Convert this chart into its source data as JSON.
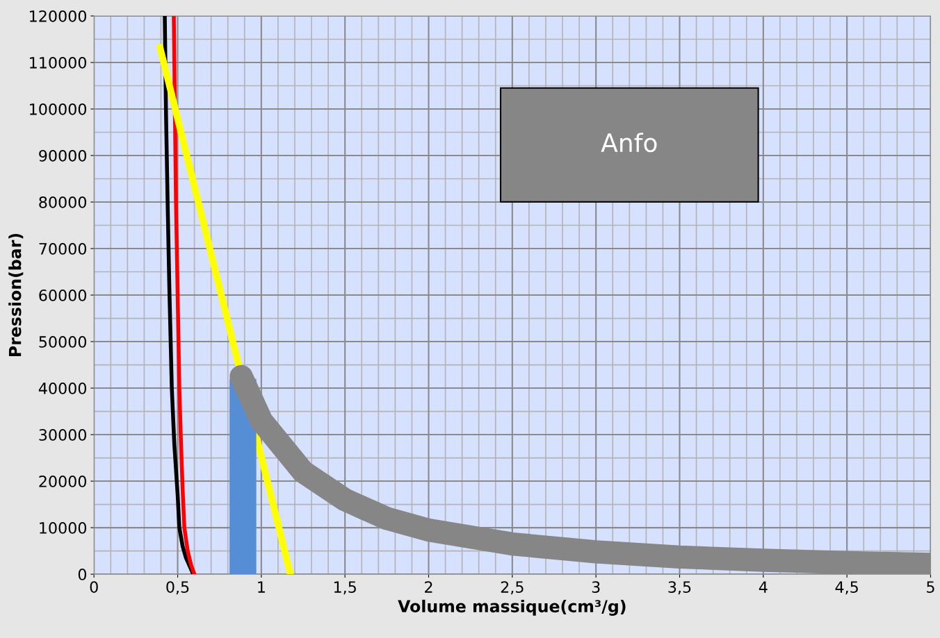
{
  "chart_data": {
    "type": "line",
    "xlabel": "Volume massique(cm³/g)",
    "ylabel": "Pression(bar)",
    "xlim": [
      0,
      5
    ],
    "ylim": [
      0,
      120000
    ],
    "xticks": [
      0,
      {
        "value": 0.5,
        "label": "0,5"
      },
      1,
      {
        "value": 1.5,
        "label": "1,5"
      },
      2,
      {
        "value": 2.5,
        "label": "2,5"
      },
      3,
      {
        "value": 3.5,
        "label": "3,5"
      },
      4,
      {
        "value": 4.5,
        "label": "4,5"
      },
      5
    ],
    "yticks": [
      0,
      10000,
      20000,
      30000,
      40000,
      50000,
      60000,
      70000,
      80000,
      90000,
      100000,
      110000,
      120000
    ],
    "grid": true,
    "marker": "none",
    "series": [
      {
        "color": "#000000",
        "x": [
          0.423,
          0.43,
          0.44,
          0.45,
          0.465,
          0.48,
          0.5,
          0.51,
          0.53,
          0.55,
          0.575,
          0.593
        ],
        "values": [
          120000,
          100000,
          80000,
          62000,
          40000,
          28000,
          17000,
          10000,
          6000,
          3500,
          1500,
          0
        ]
      },
      {
        "color": "#ff0000",
        "x": [
          0.477,
          0.49,
          0.5,
          0.51,
          0.52,
          0.53,
          0.54,
          0.56,
          0.58,
          0.6
        ],
        "values": [
          120000,
          80000,
          60000,
          40000,
          28000,
          18000,
          10000,
          5000,
          2000,
          0
        ]
      },
      {
        "color": "#ffff00",
        "x": [
          0.394,
          1.174
        ],
        "values": [
          113300,
          0
        ]
      },
      {
        "type": "area",
        "color": "#558ed5",
        "x": [
          0.81,
          0.97
        ],
        "values": [
          42000,
          42000
        ]
      },
      {
        "color": "#868686",
        "x": [
          0.88,
          1.0,
          1.25,
          1.5,
          1.75,
          2.0,
          2.5,
          3.0,
          3.5,
          4.0,
          4.5,
          5.0
        ],
        "values": [
          42500,
          33000,
          22000,
          16000,
          12000,
          9500,
          6500,
          4800,
          3700,
          3000,
          2500,
          2100
        ]
      }
    ],
    "annotations": [
      "Anfo"
    ]
  }
}
